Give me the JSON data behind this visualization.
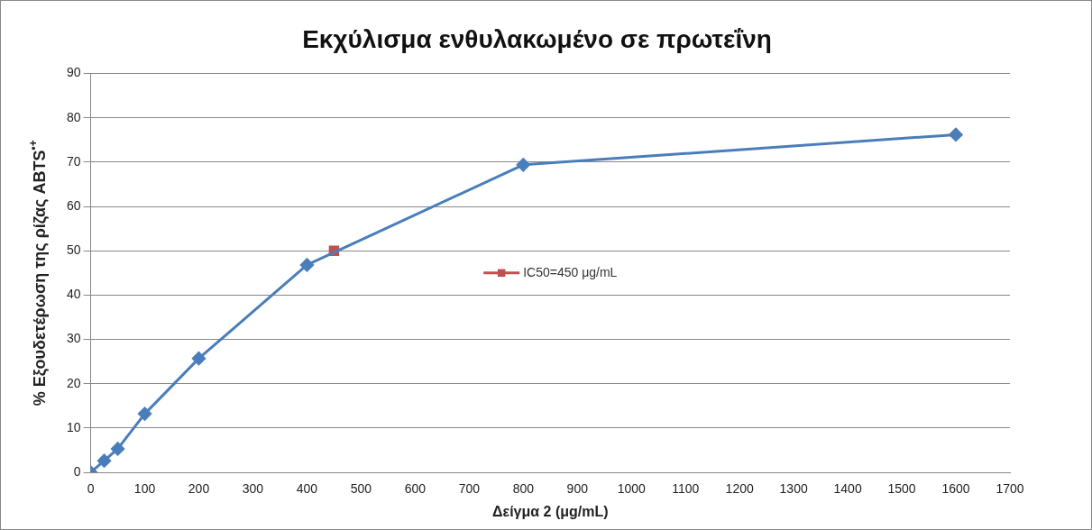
{
  "chart_data": {
    "type": "line",
    "title": "Εκχύλισμα ενθυλακωμένο σε πρωτεΐνη",
    "xlabel": "Δείγμα 2 (μg/mL)",
    "ylabel": "% Εξουδετέρωση της ρίζας ABTS$^{•+}$",
    "series": [
      {
        "color": "#4a7ebb",
        "marker": "diamond",
        "x": [
          0,
          25,
          50,
          100,
          200,
          400,
          800,
          1600
        ],
        "values": [
          0,
          2.6,
          5.3,
          13.2,
          25.7,
          46.8,
          69.4,
          76.2
        ]
      },
      {
        "name": "IC50=450 μg/mL",
        "color": "#c0504d",
        "marker": "square",
        "x": [
          450
        ],
        "values": [
          50
        ]
      }
    ],
    "xlim": [
      0,
      1700
    ],
    "xticks": [
      0,
      100,
      200,
      300,
      400,
      500,
      600,
      700,
      800,
      900,
      1000,
      1100,
      1200,
      1300,
      1400,
      1500,
      1600,
      1700
    ],
    "ylim": [
      0,
      90
    ],
    "yticks": [
      0,
      10,
      20,
      30,
      40,
      50,
      60,
      70,
      80,
      90
    ],
    "grid": "y",
    "legend": "center"
  }
}
